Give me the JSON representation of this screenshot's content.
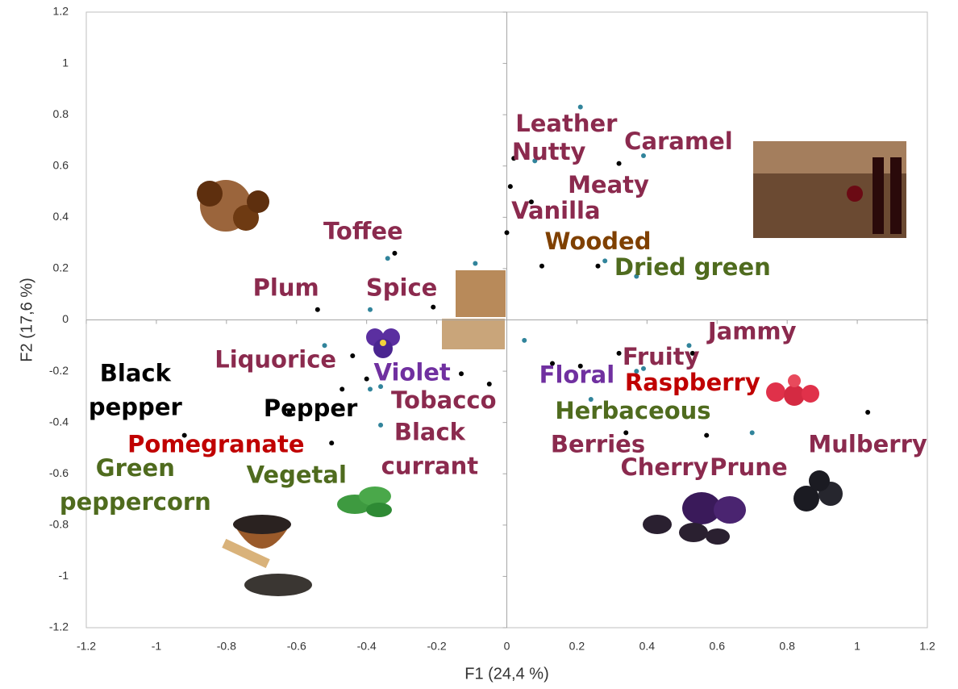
{
  "chart_data": {
    "type": "scatter",
    "xlabel": "F1 (24,4 %)",
    "ylabel": "F2 (17,6 %)",
    "xlim": [
      -1.2,
      1.2
    ],
    "ylim": [
      -1.2,
      1.2
    ],
    "xticks": [
      -1.2,
      -1,
      -0.8,
      -0.6,
      -0.4,
      -0.2,
      0,
      0.2,
      0.4,
      0.6,
      0.8,
      1,
      1.2
    ],
    "yticks": [
      -1.2,
      -1,
      -0.8,
      -0.6,
      -0.4,
      -0.2,
      0,
      0.2,
      0.4,
      0.6,
      0.8,
      1,
      1.2
    ],
    "series": [
      {
        "color": "#000000",
        "x": [
          -0.32,
          -0.54,
          -0.21,
          -0.44,
          -0.47,
          -0.4,
          -0.13,
          -0.05,
          -0.92,
          -0.62,
          -0.5,
          0.0,
          0.01,
          0.02,
          0.07,
          0.1,
          0.26,
          0.32,
          0.13,
          0.21,
          0.32,
          0.53,
          0.34,
          0.57,
          1.03
        ],
        "y": [
          0.26,
          0.04,
          0.05,
          -0.14,
          -0.27,
          -0.23,
          -0.21,
          -0.25,
          -0.45,
          -0.36,
          -0.48,
          0.34,
          0.52,
          0.63,
          0.46,
          0.21,
          0.21,
          0.61,
          -0.17,
          -0.18,
          -0.13,
          -0.13,
          -0.44,
          -0.45,
          -0.36
        ]
      },
      {
        "color": "#31849b",
        "x": [
          0.21,
          0.39,
          0.08,
          0.28,
          0.37,
          -0.34,
          -0.09,
          -0.39,
          -0.52,
          -0.39,
          -0.36,
          -0.36,
          0.05,
          0.52,
          0.39,
          0.37,
          0.24,
          0.7
        ],
        "y": [
          0.83,
          0.64,
          0.62,
          0.23,
          0.17,
          0.24,
          0.22,
          0.04,
          -0.1,
          -0.27,
          -0.26,
          -0.41,
          -0.08,
          -0.1,
          -0.19,
          -0.2,
          -0.31,
          -0.44
        ]
      }
    ],
    "annotations": [
      {
        "text": [
          "Leather"
        ],
        "x": 0.17,
        "y": 0.76,
        "color": "#8b2a4e"
      },
      {
        "text": [
          "Caramel"
        ],
        "x": 0.49,
        "y": 0.69,
        "color": "#8b2a4e"
      },
      {
        "text": [
          "Nutty"
        ],
        "x": 0.12,
        "y": 0.65,
        "color": "#8b2a4e"
      },
      {
        "text": [
          "Meaty"
        ],
        "x": 0.29,
        "y": 0.52,
        "color": "#8b2a4e"
      },
      {
        "text": [
          "Vanilla"
        ],
        "x": 0.14,
        "y": 0.42,
        "color": "#8b2a4e"
      },
      {
        "text": [
          "Toffee"
        ],
        "x": -0.41,
        "y": 0.34,
        "color": "#8b2a4e"
      },
      {
        "text": [
          "Wooded"
        ],
        "x": 0.26,
        "y": 0.3,
        "color": "#7f4000"
      },
      {
        "text": [
          "Dried green"
        ],
        "x": 0.53,
        "y": 0.2,
        "color": "#4f6b1e"
      },
      {
        "text": [
          "Plum"
        ],
        "x": -0.63,
        "y": 0.12,
        "color": "#8b2a4e"
      },
      {
        "text": [
          "Spice"
        ],
        "x": -0.3,
        "y": 0.12,
        "color": "#8b2a4e"
      },
      {
        "text": [
          "Jammy"
        ],
        "x": 0.7,
        "y": -0.05,
        "color": "#8b2a4e"
      },
      {
        "text": [
          "Liquorice"
        ],
        "x": -0.66,
        "y": -0.16,
        "color": "#8b2a4e"
      },
      {
        "text": [
          "Fruity"
        ],
        "x": 0.44,
        "y": -0.15,
        "color": "#8b2a4e"
      },
      {
        "text": [
          "Black",
          "pepper"
        ],
        "x": -1.06,
        "y": -0.28,
        "color": "#000000"
      },
      {
        "text": [
          "Violet"
        ],
        "x": -0.27,
        "y": -0.21,
        "color": "#7030a0"
      },
      {
        "text": [
          "Floral"
        ],
        "x": 0.2,
        "y": -0.22,
        "color": "#7030a0"
      },
      {
        "text": [
          "Raspberry"
        ],
        "x": 0.53,
        "y": -0.25,
        "color": "#c00000"
      },
      {
        "text": [
          "Tobacco"
        ],
        "x": -0.18,
        "y": -0.32,
        "color": "#8b2a4e"
      },
      {
        "text": [
          "Pepper"
        ],
        "x": -0.56,
        "y": -0.35,
        "color": "#000000"
      },
      {
        "text": [
          "Herbaceous"
        ],
        "x": 0.36,
        "y": -0.36,
        "color": "#4f6b1e"
      },
      {
        "text": [
          "Black",
          "currant"
        ],
        "x": -0.22,
        "y": -0.51,
        "color": "#8b2a4e"
      },
      {
        "text": [
          "Pomegranate"
        ],
        "x": -0.83,
        "y": -0.49,
        "color": "#c00000"
      },
      {
        "text": [
          "Berries"
        ],
        "x": 0.26,
        "y": -0.49,
        "color": "#8b2a4e"
      },
      {
        "text": [
          "Mulberry"
        ],
        "x": 1.03,
        "y": -0.49,
        "color": "#8b2a4e"
      },
      {
        "text": [
          "Green",
          "peppercorn"
        ],
        "x": -1.06,
        "y": -0.65,
        "color": "#4f6b1e"
      },
      {
        "text": [
          "Vegetal"
        ],
        "x": -0.6,
        "y": -0.61,
        "color": "#4f6b1e"
      },
      {
        "text": [
          "Cherry"
        ],
        "x": 0.45,
        "y": -0.58,
        "color": "#8b2a4e"
      },
      {
        "text": [
          "Prune"
        ],
        "x": 0.69,
        "y": -0.58,
        "color": "#8b2a4e"
      }
    ]
  }
}
